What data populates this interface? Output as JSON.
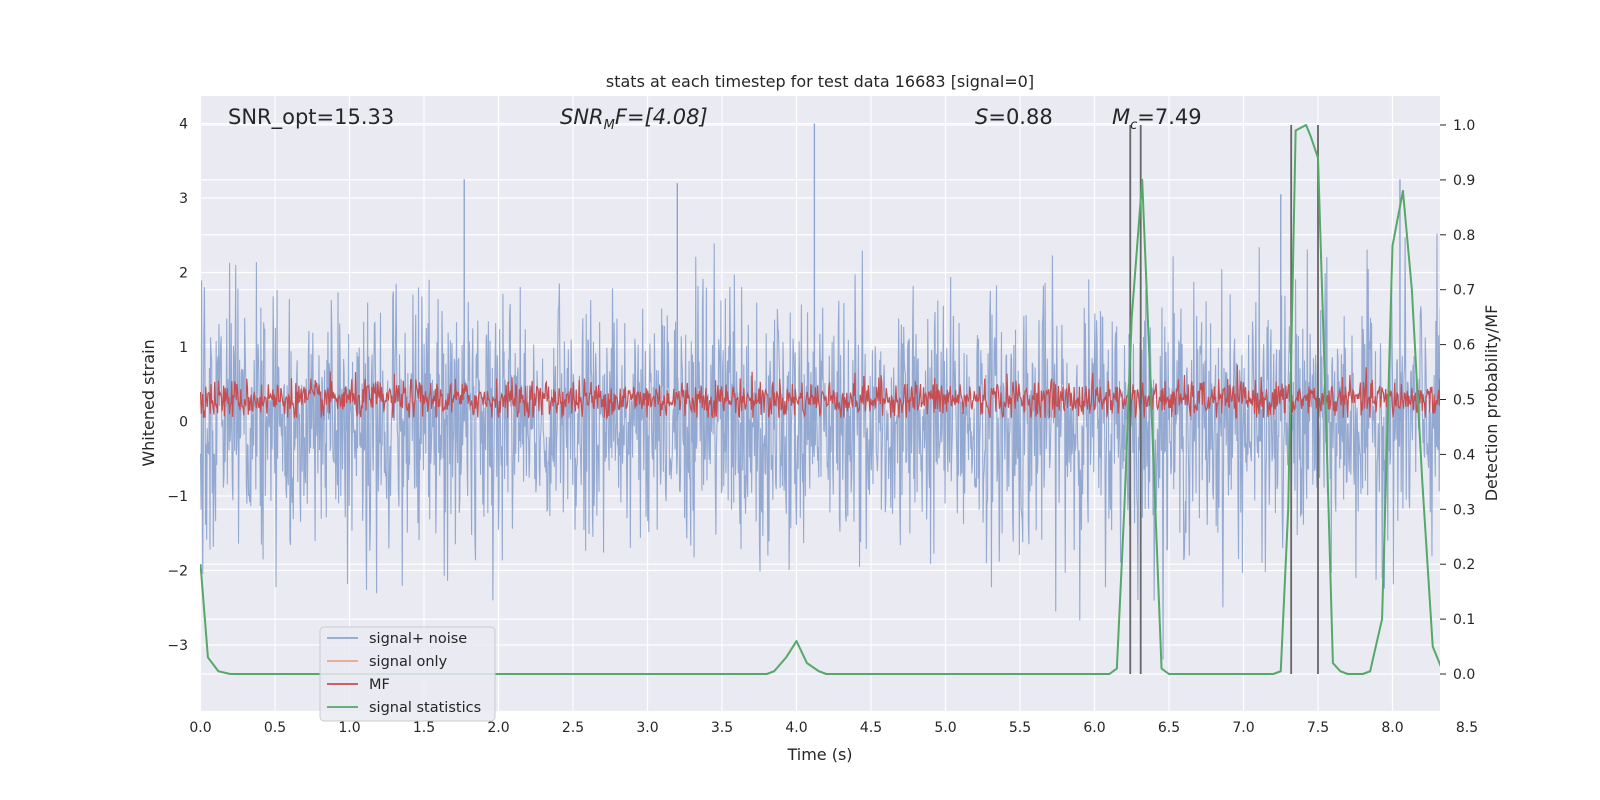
{
  "chart_data": {
    "type": "line",
    "title": "stats at each timestep for test data 16683 [signal=0]",
    "xlabel": "Time (s)",
    "ylabel": "Whitened strain",
    "y2label": "Detection probability/MF",
    "xlim": [
      0,
      9.0
    ],
    "ylim": [
      -3.75,
      4.35
    ],
    "y2lim": [
      -0.05,
      1.045
    ],
    "xticks": [
      "0.0",
      "0.5",
      "1.0",
      "1.5",
      "2.0",
      "2.5",
      "3.0",
      "3.5",
      "4.0",
      "4.5",
      "5.0",
      "5.5",
      "6.0",
      "6.5",
      "7.0",
      "7.5",
      "8.0",
      "8.5"
    ],
    "yticks": [
      "-3",
      "-2",
      "-1",
      "0",
      "1",
      "2",
      "3",
      "4"
    ],
    "y2ticks": [
      "0.0",
      "0.1",
      "0.2",
      "0.3",
      "0.4",
      "0.5",
      "0.6",
      "0.7",
      "0.8",
      "0.9",
      "1.0"
    ],
    "grid": true,
    "legend_position": "lower-left",
    "annotations": {
      "snr_opt": "SNR_opt=15.33",
      "snr_mf_base": "SNR",
      "snr_mf_sub": "M",
      "snr_mf_rest": "F=[4.08]",
      "s_italic": "S",
      "s_rest": "=0.88",
      "mc_base": "M",
      "mc_sub": "c",
      "mc_rest": "=7.49"
    },
    "series": [
      {
        "name": "signal+ noise",
        "color": "#8fa5cf",
        "kind": "noise",
        "approx_range": [
          -2.0,
          2.0
        ],
        "notable_peaks": [
          {
            "x": 1.77,
            "y": 3.25
          },
          {
            "x": 3.2,
            "y": 3.2
          },
          {
            "x": 4.12,
            "y": 4.0
          },
          {
            "x": 7.25,
            "y": 3.05
          },
          {
            "x": 8.05,
            "y": 3.25
          }
        ]
      },
      {
        "name": "signal only",
        "color": "#e8a58a",
        "kind": "line",
        "x": [],
        "y": []
      },
      {
        "name": "MF",
        "color": "#c44e52",
        "kind": "mf",
        "approx_center": 0.3,
        "approx_range": [
          0.05,
          0.85
        ]
      },
      {
        "name": "signal statistics",
        "color": "#55a868",
        "kind": "line",
        "axis": "right",
        "x": [
          0.0,
          0.05,
          0.12,
          0.2,
          0.3,
          3.8,
          3.85,
          3.93,
          4.0,
          4.07,
          4.15,
          4.2,
          6.1,
          6.15,
          6.2,
          6.25,
          6.32,
          6.38,
          6.45,
          6.5,
          7.2,
          7.25,
          7.3,
          7.35,
          7.42,
          7.45,
          7.5,
          7.55,
          7.6,
          7.65,
          7.7,
          7.8,
          7.85,
          7.93,
          8.0,
          8.07,
          8.13,
          8.2,
          8.27,
          8.33,
          8.4,
          9.0
        ],
        "y": [
          0.2,
          0.03,
          0.005,
          0.0,
          0.0,
          0.0,
          0.005,
          0.03,
          0.06,
          0.02,
          0.005,
          0.0,
          0.0,
          0.01,
          0.3,
          0.65,
          0.9,
          0.5,
          0.01,
          0.0,
          0.0,
          0.005,
          0.3,
          0.99,
          1.0,
          0.98,
          0.94,
          0.5,
          0.02,
          0.005,
          0.0,
          0.0,
          0.005,
          0.1,
          0.78,
          0.88,
          0.7,
          0.35,
          0.05,
          0.01,
          0.0,
          0.0
        ]
      }
    ],
    "vertical_lines": [
      6.24,
      6.31,
      7.32,
      7.5
    ]
  }
}
